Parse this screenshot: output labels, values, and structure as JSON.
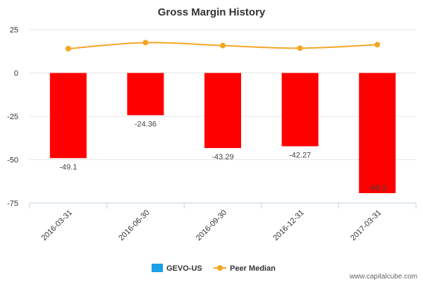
{
  "chart_data": {
    "type": "bar",
    "title": "Gross Margin History",
    "categories": [
      "2016-03-31",
      "2016-06-30",
      "2016-09-30",
      "2016-12-31",
      "2017-03-31"
    ],
    "series": [
      {
        "name": "GEVO-US",
        "type": "bar",
        "values": [
          -49.1,
          -24.36,
          -43.29,
          -42.27,
          -69.3
        ],
        "data_labels": [
          "-49.1",
          "-24.36",
          "-43.29",
          "-42.27",
          "-69.3"
        ],
        "bar_color": "#ff0000",
        "legend_color": "#1a9fe8"
      },
      {
        "name": "Peer Median",
        "type": "line",
        "values": [
          14,
          17.5,
          15.8,
          14.3,
          16.3
        ],
        "color": "#f5a623"
      }
    ],
    "yticks": [
      25,
      0,
      -25,
      -50,
      -75
    ],
    "ylim": [
      -75,
      25
    ],
    "grid": true,
    "legend_position": "bottom-center"
  },
  "footer": {
    "source": "www.capitalcube.com"
  }
}
